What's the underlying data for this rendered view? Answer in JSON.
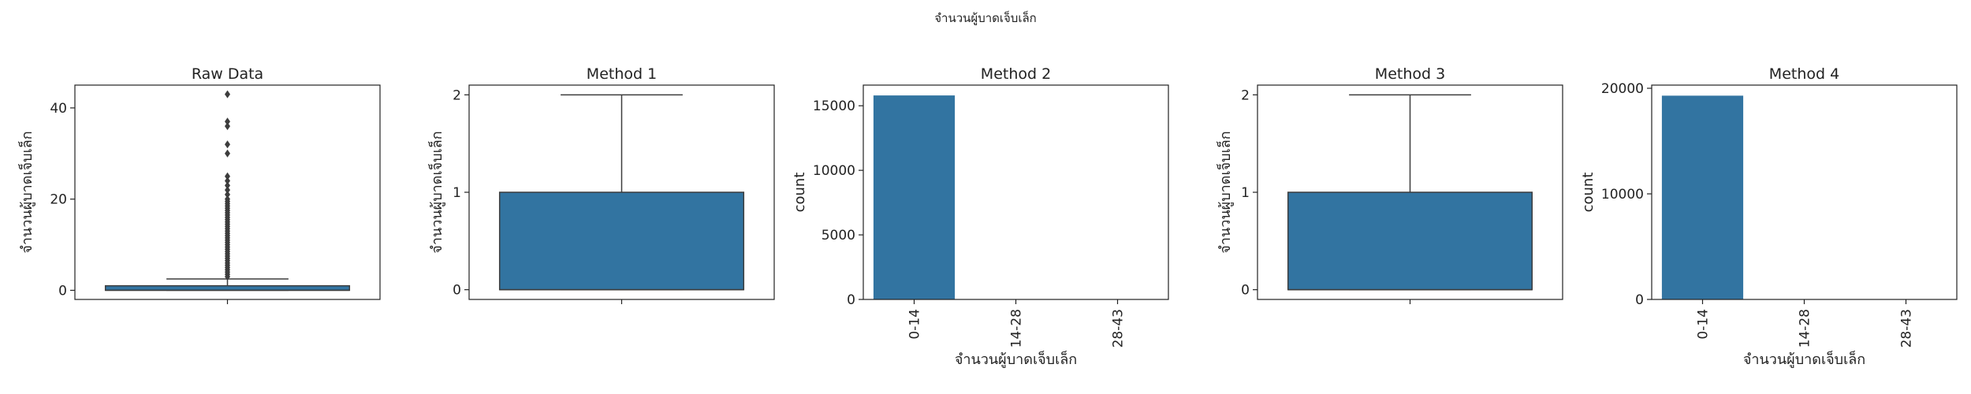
{
  "chart_data": {
    "suptitle": "จำนวนผู้บาดเจ็บเล็ก",
    "colors": {
      "box": "#3274a1",
      "line": "#3d3d3d",
      "axes": "#222222"
    },
    "panels": [
      {
        "type": "box",
        "title": "Raw Data",
        "xlabel": "",
        "ylabel": "จำนวนผู้บาดเจ็บเล็ก",
        "ylim": [
          -2,
          45
        ],
        "yticks": [
          0,
          20,
          40
        ],
        "box": {
          "q1": 0,
          "median": 0,
          "q3": 1,
          "whisker_low": 0,
          "whisker_high": 2.5
        },
        "outliers": [
          3,
          3.5,
          4,
          4.5,
          5,
          5.5,
          6,
          6.5,
          7,
          7.5,
          8,
          8.5,
          9,
          9.5,
          10,
          10.5,
          11,
          11.5,
          12,
          12.5,
          13,
          13.5,
          14,
          14.5,
          15,
          15.5,
          16,
          16.5,
          17,
          17.5,
          18,
          18.5,
          19,
          19.5,
          20,
          21,
          22,
          23,
          24,
          25,
          30,
          32,
          36,
          37,
          43
        ]
      },
      {
        "type": "box",
        "title": "Method 1",
        "xlabel": "",
        "ylabel": "จำนวนผู้บาดเจ็บเล็ก",
        "ylim": [
          -0.1,
          2.1
        ],
        "yticks": [
          0,
          1,
          2
        ],
        "box": {
          "q1": 0,
          "median": 0,
          "q3": 1,
          "whisker_low": 0,
          "whisker_high": 2
        },
        "outliers": []
      },
      {
        "type": "bar",
        "title": "Method 2",
        "xlabel": "จำนวนผู้บาดเจ็บเล็ก",
        "ylabel": "count",
        "ylim": [
          0,
          16600
        ],
        "yticks": [
          0,
          5000,
          10000,
          15000
        ],
        "categories": [
          "0-14",
          "14-28",
          "28-43"
        ],
        "values": [
          15800,
          0,
          0
        ]
      },
      {
        "type": "box",
        "title": "Method 3",
        "xlabel": "",
        "ylabel": "จำนวนผู้บาดเจ็บเล็ก",
        "ylim": [
          -0.1,
          2.1
        ],
        "yticks": [
          0,
          1,
          2
        ],
        "box": {
          "q1": 0,
          "median": 0,
          "q3": 1,
          "whisker_low": 0,
          "whisker_high": 2
        },
        "outliers": []
      },
      {
        "type": "bar",
        "title": "Method 4",
        "xlabel": "จำนวนผู้บาดเจ็บเล็ก",
        "ylabel": "count",
        "ylim": [
          0,
          20300
        ],
        "yticks": [
          0,
          10000,
          20000
        ],
        "categories": [
          "0-14",
          "14-28",
          "28-43"
        ],
        "values": [
          19300,
          0,
          0
        ]
      }
    ]
  }
}
